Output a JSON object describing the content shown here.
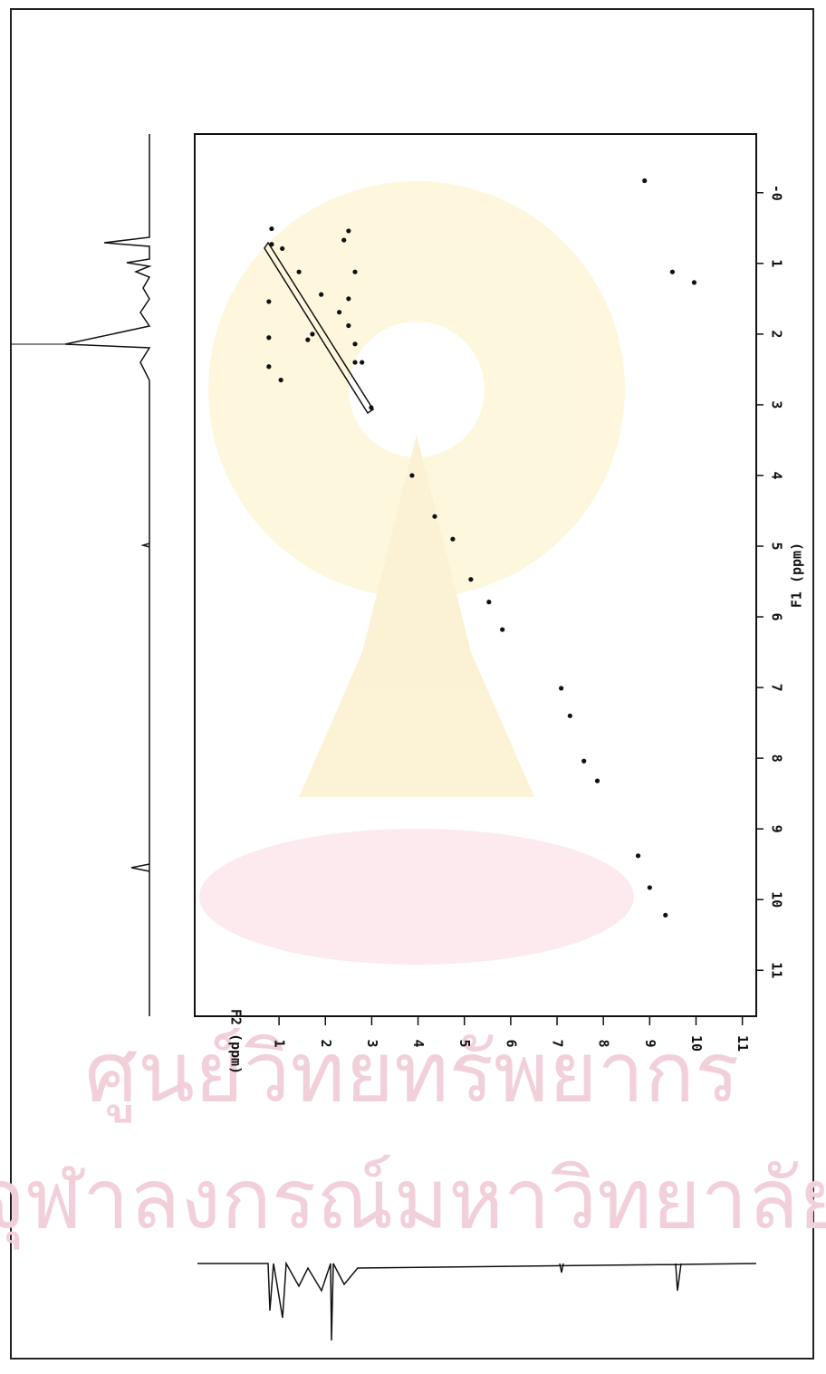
{
  "chart_data": {
    "type": "scatter",
    "xlabel": "F2 (ppm)",
    "ylabel": "F1 (ppm)",
    "xlim": [
      -0.82,
      11.3
    ],
    "ylim": [
      -0.83,
      11.65
    ],
    "xticks": [
      1,
      2,
      3,
      4,
      5,
      6,
      7,
      8,
      9,
      10,
      11
    ],
    "yticks": [
      {
        "value": 0,
        "label": "-0"
      },
      1,
      2,
      3,
      4,
      5,
      6,
      7,
      8,
      9,
      10,
      11
    ],
    "color": "#111111",
    "x": [
      0.84,
      0.84,
      1.07,
      1.43,
      1.91,
      2.3,
      2.5,
      2.79,
      2.99,
      1.04,
      1.62,
      1.72,
      2.5,
      2.4,
      2.5,
      0.78,
      0.78,
      0.78,
      2.64,
      2.64,
      2.64,
      3.87,
      4.36,
      4.75,
      5.14,
      5.53,
      5.82,
      7.09,
      7.28,
      7.58,
      7.87,
      8.75,
      9.0,
      9.34,
      8.89,
      9.49,
      9.96
    ],
    "values": [
      0.51,
      0.73,
      0.79,
      1.12,
      1.44,
      1.69,
      1.88,
      2.4,
      3.04,
      2.65,
      2.08,
      2.0,
      1.5,
      0.67,
      0.54,
      1.54,
      2.05,
      2.46,
      1.12,
      2.14,
      2.4,
      4.0,
      4.58,
      4.9,
      5.47,
      5.79,
      6.18,
      7.01,
      7.4,
      8.04,
      8.32,
      9.38,
      9.83,
      10.22,
      -0.17,
      1.12,
      1.27
    ],
    "watermark": [
      "ศูนย์วิทยทรัพยากร",
      "จุฬาลงกรณ์มหาวิทยาลัย"
    ]
  }
}
